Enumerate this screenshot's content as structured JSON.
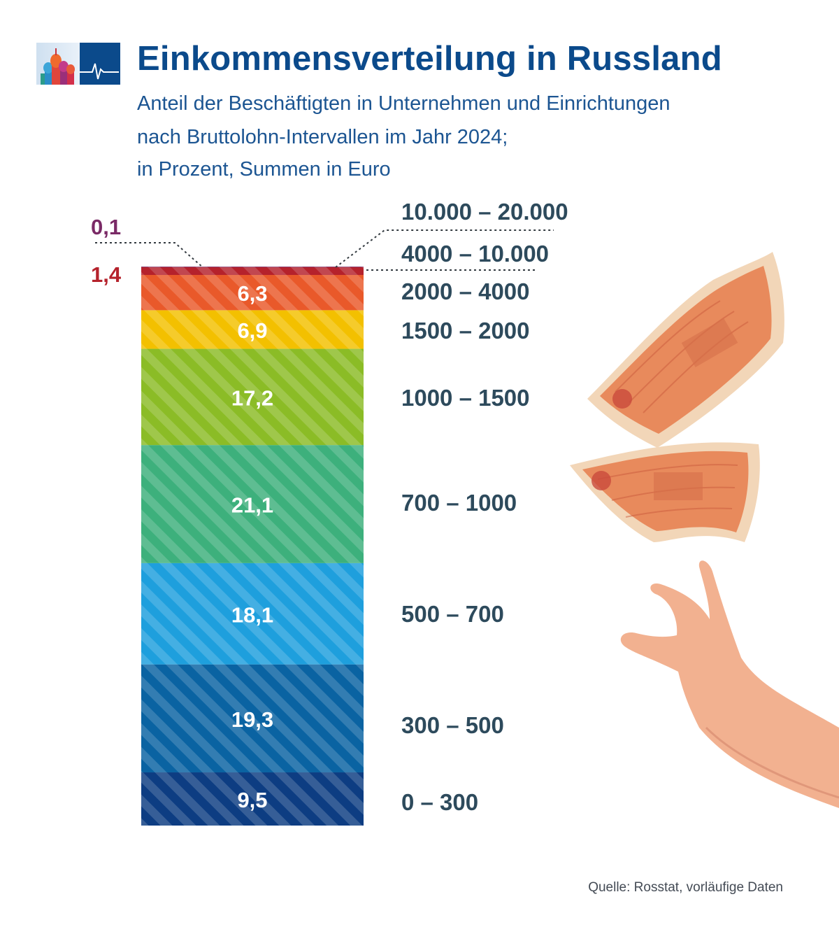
{
  "title": "Einkommensverteilung in Russland",
  "subtitle_lines": [
    "Anteil der Beschäftigten in Unternehmen und Einrichtungen",
    "nach Bruttolohn-Intervallen im Jahr 2024;",
    "in Prozent, Summen in Euro"
  ],
  "source": "Quelle: Rosstat, vorläufige Daten",
  "colors": {
    "title": "#0b4a8b",
    "subtitle": "#1c5592",
    "category_label": "#2d4a5c",
    "accent_purple": "#7a2a66",
    "accent_red": "#b5222c"
  },
  "illustration": {
    "icons": [
      "banknote-5000-rubles-icon",
      "banknote-5000-rubles-icon",
      "hand-icon"
    ]
  },
  "chart_data": {
    "type": "bar",
    "stacked": true,
    "categories": [
      "0 – 300",
      "300 – 500",
      "500 – 700",
      "700 – 1000",
      "1000 – 1500",
      "1500 – 2000",
      "2000 – 4000",
      "4000 – 10.000",
      "10.000 – 20.000"
    ],
    "values": [
      9.5,
      19.3,
      18.1,
      21.1,
      17.2,
      6.9,
      6.3,
      1.4,
      0.1
    ],
    "value_labels": [
      "9,5",
      "19,3",
      "18,1",
      "21,1",
      "17,2",
      "6,9",
      "6,3",
      "1,4",
      "0,1"
    ],
    "segment_colors": [
      "#0d3d82",
      "#0a63a2",
      "#1e9fdd",
      "#3db07c",
      "#8bbc26",
      "#f3c000",
      "#e9592a",
      "#b5222c",
      "#7a2a66"
    ],
    "title": "Einkommensverteilung in Russland",
    "xlabel": "",
    "ylabel": "",
    "grid": false,
    "legend": "none"
  }
}
